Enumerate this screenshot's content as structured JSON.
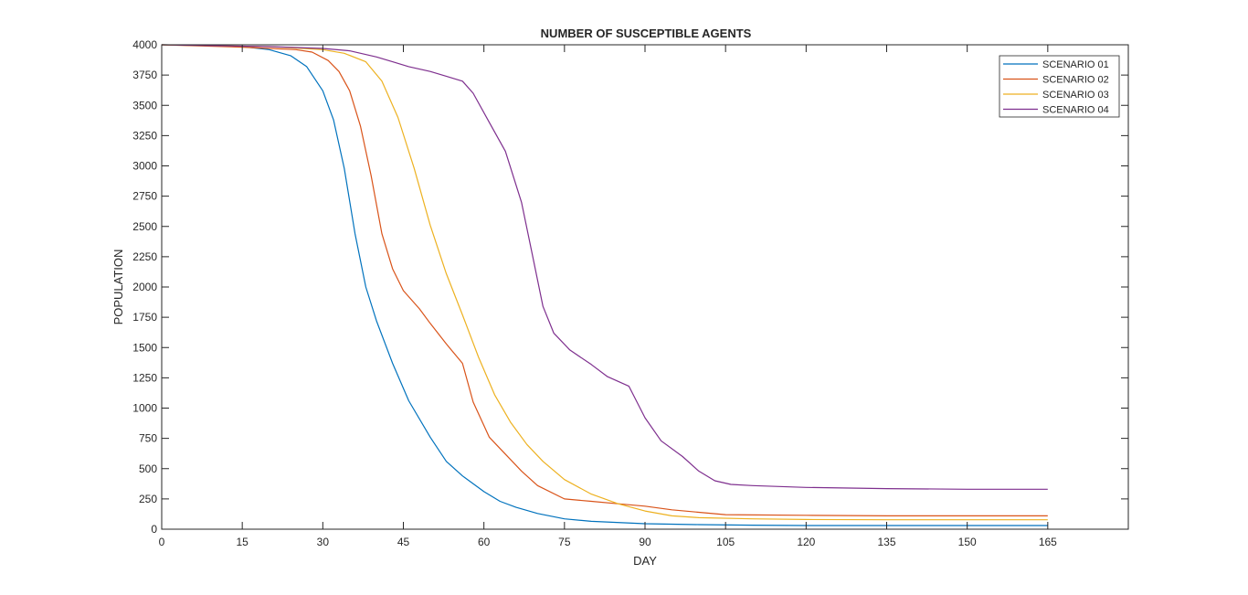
{
  "chart_data": {
    "type": "line",
    "title": "NUMBER OF SUSCEPTIBLE AGENTS",
    "xlabel": "DAY",
    "ylabel": "POPULATION",
    "xlim": [
      0,
      180
    ],
    "ylim": [
      0,
      4000
    ],
    "xticks": [
      0,
      15,
      30,
      45,
      60,
      75,
      90,
      105,
      120,
      135,
      150,
      165
    ],
    "yticks": [
      0,
      250,
      500,
      750,
      1000,
      1250,
      1500,
      1750,
      2000,
      2250,
      2500,
      2750,
      3000,
      3250,
      3500,
      3750,
      4000
    ],
    "grid": false,
    "legend_position": "top-right",
    "series": [
      {
        "name": "SCENARIO 01",
        "color": "#0072BD",
        "x": [
          0,
          10,
          15,
          20,
          24,
          27,
          30,
          32,
          34,
          36,
          38,
          40,
          43,
          46,
          50,
          53,
          56,
          60,
          63,
          66,
          70,
          75,
          80,
          90,
          100,
          110,
          120,
          135,
          150,
          165
        ],
        "y": [
          4000,
          3995,
          3985,
          3960,
          3910,
          3820,
          3620,
          3380,
          2980,
          2440,
          2000,
          1720,
          1370,
          1060,
          760,
          560,
          440,
          310,
          230,
          180,
          130,
          85,
          65,
          45,
          38,
          33,
          30,
          30,
          30,
          30
        ]
      },
      {
        "name": "SCENARIO 02",
        "color": "#D95319",
        "x": [
          0,
          15,
          25,
          28,
          31,
          33,
          35,
          37,
          39,
          41,
          43,
          45,
          48,
          50,
          53,
          56,
          58,
          61,
          64,
          67,
          70,
          75,
          80,
          85,
          90,
          95,
          100,
          105,
          120,
          135,
          150,
          165
        ],
        "y": [
          4000,
          3980,
          3960,
          3940,
          3870,
          3780,
          3620,
          3330,
          2920,
          2440,
          2150,
          1970,
          1820,
          1700,
          1530,
          1370,
          1050,
          760,
          620,
          480,
          360,
          250,
          230,
          210,
          190,
          160,
          140,
          120,
          115,
          110,
          110,
          110
        ]
      },
      {
        "name": "SCENARIO 03",
        "color": "#EDB120",
        "x": [
          0,
          20,
          30,
          34,
          38,
          41,
          44,
          47,
          50,
          53,
          56,
          59,
          62,
          65,
          68,
          71,
          75,
          80,
          85,
          90,
          95,
          100,
          110,
          120,
          135,
          150,
          165
        ],
        "y": [
          4000,
          3985,
          3960,
          3930,
          3860,
          3700,
          3400,
          2980,
          2510,
          2110,
          1770,
          1420,
          1110,
          880,
          700,
          560,
          410,
          290,
          210,
          150,
          110,
          95,
          85,
          80,
          78,
          78,
          78
        ]
      },
      {
        "name": "SCENARIO 04",
        "color": "#7E2F8E",
        "x": [
          0,
          20,
          30,
          35,
          40,
          43,
          46,
          50,
          53,
          56,
          58,
          61,
          64,
          67,
          69,
          71,
          73,
          76,
          80,
          83,
          87,
          90,
          93,
          97,
          100,
          103,
          106,
          110,
          120,
          135,
          150,
          165
        ],
        "y": [
          4000,
          3985,
          3970,
          3950,
          3900,
          3860,
          3820,
          3780,
          3740,
          3700,
          3600,
          3360,
          3120,
          2700,
          2270,
          1840,
          1620,
          1480,
          1360,
          1260,
          1180,
          920,
          730,
          600,
          480,
          400,
          370,
          360,
          345,
          335,
          330,
          330
        ]
      }
    ]
  }
}
